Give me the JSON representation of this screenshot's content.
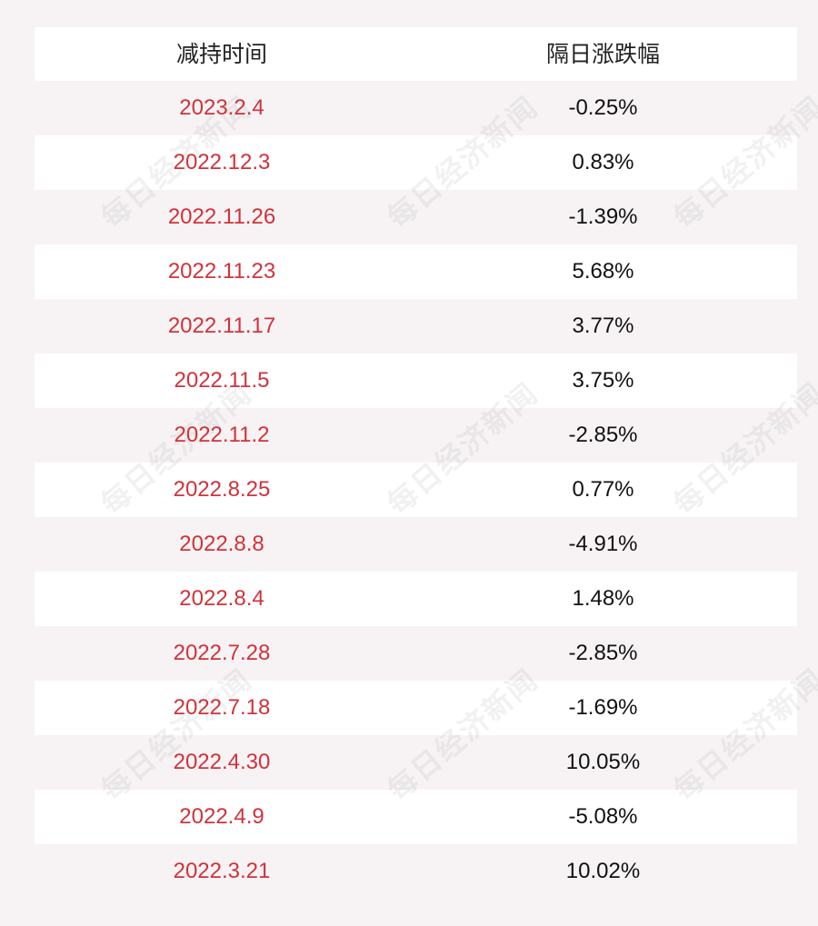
{
  "table": {
    "headers": {
      "date": "减持时间",
      "change": "隔日涨跌幅"
    },
    "rows": [
      {
        "date": "2023.2.4",
        "change": "-0.25%"
      },
      {
        "date": "2022.12.3",
        "change": "0.83%"
      },
      {
        "date": "2022.11.26",
        "change": "-1.39%"
      },
      {
        "date": "2022.11.23",
        "change": "5.68%"
      },
      {
        "date": "2022.11.17",
        "change": "3.77%"
      },
      {
        "date": "2022.11.5",
        "change": "3.75%"
      },
      {
        "date": "2022.11.2",
        "change": "-2.85%"
      },
      {
        "date": "2022.8.25",
        "change": "0.77%"
      },
      {
        "date": "2022.8.8",
        "change": "-4.91%"
      },
      {
        "date": "2022.8.4",
        "change": "1.48%"
      },
      {
        "date": "2022.7.28",
        "change": "-2.85%"
      },
      {
        "date": "2022.7.18",
        "change": "-1.69%"
      },
      {
        "date": "2022.4.30",
        "change": "10.05%"
      },
      {
        "date": "2022.4.9",
        "change": "-5.08%"
      },
      {
        "date": "2022.3.21",
        "change": "10.02%"
      }
    ]
  },
  "watermark": {
    "text": "每日经济新闻"
  },
  "colors": {
    "date_text": "#d2323a",
    "change_text": "#111111",
    "header_text": "#222222",
    "row_white": "#ffffff",
    "row_tinted": "#f7f3f4"
  }
}
